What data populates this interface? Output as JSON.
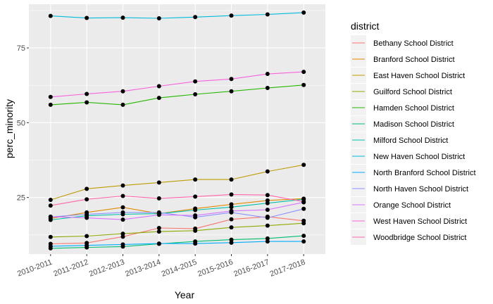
{
  "chart_data": {
    "type": "line",
    "xlabel": "Year",
    "ylabel": "perc_minority",
    "categories": [
      "2010-2011",
      "2011-2012",
      "2012-2013",
      "2013-2014",
      "2014-2015",
      "2015-2016",
      "2016-2017",
      "2017-2018"
    ],
    "y_ticks": [
      25,
      50,
      75
    ],
    "ylim": [
      6.1,
      89.6
    ],
    "grid": true,
    "legend": {
      "title": "district",
      "position": "right"
    },
    "series": [
      {
        "name": "Bethany School District",
        "color": "#F8766D",
        "values": [
          9.5,
          9.8,
          11.9,
          14.8,
          14.6,
          17.7,
          18.6,
          17.2
        ]
      },
      {
        "name": "Branford School District",
        "color": "#E18A00",
        "values": [
          18.0,
          20.0,
          21.7,
          19.6,
          21.3,
          22.7,
          24.0,
          24.6
        ]
      },
      {
        "name": "East Haven School District",
        "color": "#BE9C00",
        "values": [
          24.2,
          27.9,
          29.0,
          30.0,
          31.0,
          31.0,
          33.7,
          35.9
        ]
      },
      {
        "name": "Guilford School District",
        "color": "#8CAB00",
        "values": [
          11.8,
          12.1,
          12.9,
          13.6,
          13.9,
          15.0,
          15.6,
          16.4
        ]
      },
      {
        "name": "Hamden School District",
        "color": "#24B700",
        "values": [
          56.0,
          56.8,
          56.0,
          58.3,
          59.5,
          60.5,
          61.6,
          62.6
        ]
      },
      {
        "name": "Madison School District",
        "color": "#00BE70",
        "values": [
          8.0,
          8.3,
          8.6,
          9.5,
          10.3,
          10.9,
          11.3,
          12.2
        ]
      },
      {
        "name": "Milford School District",
        "color": "#00C1AB",
        "values": [
          17.5,
          18.9,
          19.4,
          19.6,
          20.8,
          21.8,
          23.1,
          24.4
        ]
      },
      {
        "name": "New Haven School District",
        "color": "#00BBDA",
        "values": [
          85.7,
          85.0,
          85.1,
          84.9,
          85.3,
          85.8,
          86.2,
          86.8
        ]
      },
      {
        "name": "North Branford School District",
        "color": "#00ACFC",
        "values": [
          8.7,
          9.0,
          9.3,
          9.6,
          9.6,
          9.9,
          10.3,
          10.3
        ]
      },
      {
        "name": "North Haven School District",
        "color": "#8B93FF",
        "values": [
          18.5,
          19.4,
          20.0,
          20.0,
          18.4,
          20.0,
          18.2,
          21.2
        ]
      },
      {
        "name": "Orange School District",
        "color": "#D575FE",
        "values": [
          18.6,
          18.2,
          17.6,
          19.2,
          19.0,
          20.5,
          20.9,
          23.4
        ]
      },
      {
        "name": "West Haven School District",
        "color": "#F962DD",
        "values": [
          58.6,
          59.6,
          60.5,
          62.2,
          63.8,
          64.6,
          66.3,
          67.0
        ]
      },
      {
        "name": "Woodbridge School District",
        "color": "#FF65AC",
        "values": [
          22.3,
          24.4,
          25.5,
          24.7,
          25.3,
          26.0,
          25.8,
          23.6
        ]
      }
    ]
  }
}
